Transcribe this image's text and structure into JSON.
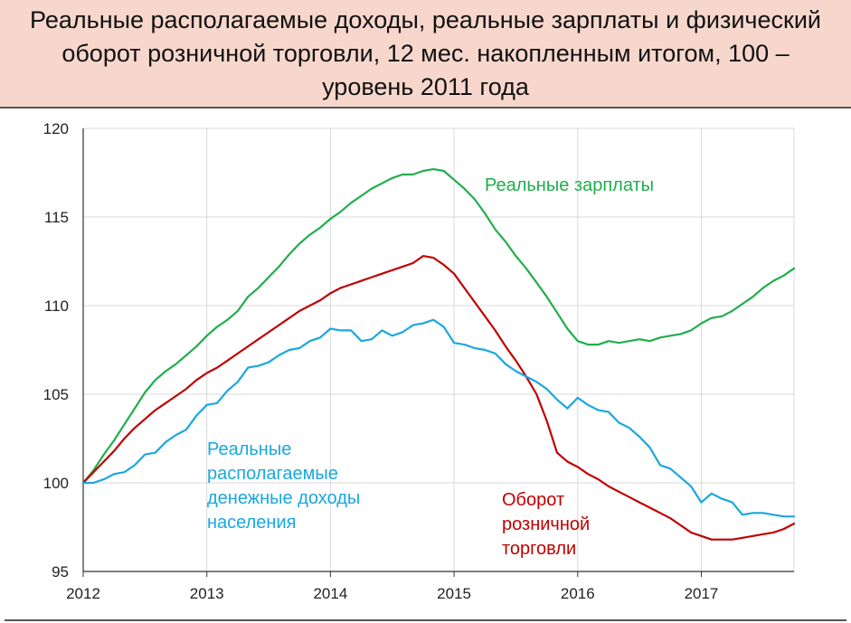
{
  "title": "Реальные располагаемые доходы, реальные зарплаты и физический оборот розничной торговли, 12 мес. накопленным итогом, 100 – уровень 2011 года",
  "colors": {
    "title_background": "#f7d7cc",
    "grid": "#d9d9d9",
    "axis": "#333333"
  },
  "chart_data": {
    "type": "line",
    "title": "Реальные располагаемые доходы, реальные зарплаты и физический оборот розничной торговли, 12 мес. накопленным итогом, 100 – уровень 2011 года",
    "xlabel": "",
    "ylabel": "",
    "ylim": [
      95,
      120
    ],
    "xlim": [
      2012.0,
      2017.75
    ],
    "grid": true,
    "y_ticks": [
      "95",
      "100",
      "105",
      "110",
      "115",
      "120"
    ],
    "x_ticks": [
      "2012",
      "2013",
      "2014",
      "2015",
      "2016",
      "2017"
    ],
    "series": [
      {
        "name": "Реальные зарплаты",
        "color": "#1fae4b",
        "label_lines": [
          "Реальные зарплаты"
        ],
        "x": [
          2012.0,
          2012.083,
          2012.167,
          2012.25,
          2012.333,
          2012.417,
          2012.5,
          2012.583,
          2012.667,
          2012.75,
          2012.833,
          2012.917,
          2013.0,
          2013.083,
          2013.167,
          2013.25,
          2013.333,
          2013.417,
          2013.5,
          2013.583,
          2013.667,
          2013.75,
          2013.833,
          2013.917,
          2014.0,
          2014.083,
          2014.167,
          2014.25,
          2014.333,
          2014.417,
          2014.5,
          2014.583,
          2014.667,
          2014.75,
          2014.833,
          2014.917,
          2015.0,
          2015.083,
          2015.167,
          2015.25,
          2015.333,
          2015.417,
          2015.5,
          2015.583,
          2015.667,
          2015.75,
          2015.833,
          2015.917,
          2016.0,
          2016.083,
          2016.167,
          2016.25,
          2016.333,
          2016.417,
          2016.5,
          2016.583,
          2016.667,
          2016.75,
          2016.833,
          2016.917,
          2017.0,
          2017.083,
          2017.167,
          2017.25,
          2017.333,
          2017.417,
          2017.5,
          2017.583,
          2017.667,
          2017.75
        ],
        "values": [
          100.0,
          100.7,
          101.6,
          102.4,
          103.3,
          104.2,
          105.1,
          105.8,
          106.3,
          106.7,
          107.2,
          107.7,
          108.3,
          108.8,
          109.2,
          109.7,
          110.5,
          111.0,
          111.6,
          112.2,
          112.9,
          113.5,
          114.0,
          114.4,
          114.9,
          115.3,
          115.8,
          116.2,
          116.6,
          116.9,
          117.2,
          117.4,
          117.4,
          117.6,
          117.7,
          117.6,
          117.1,
          116.6,
          116.0,
          115.2,
          114.3,
          113.6,
          112.8,
          112.1,
          111.3,
          110.5,
          109.6,
          108.7,
          108.0,
          107.8,
          107.8,
          108.0,
          107.9,
          108.0,
          108.1,
          108.0,
          108.2,
          108.3,
          108.4,
          108.6,
          109.0,
          109.3,
          109.4,
          109.7,
          110.1,
          110.5,
          111.0,
          111.4,
          111.7,
          112.1
        ]
      },
      {
        "name": "Оборот розничной торговли",
        "color": "#c00000",
        "label_lines": [
          "Оборот",
          "розничной",
          "торговли"
        ],
        "x": [
          2012.0,
          2012.083,
          2012.167,
          2012.25,
          2012.333,
          2012.417,
          2012.5,
          2012.583,
          2012.667,
          2012.75,
          2012.833,
          2012.917,
          2013.0,
          2013.083,
          2013.167,
          2013.25,
          2013.333,
          2013.417,
          2013.5,
          2013.583,
          2013.667,
          2013.75,
          2013.833,
          2013.917,
          2014.0,
          2014.083,
          2014.167,
          2014.25,
          2014.333,
          2014.417,
          2014.5,
          2014.583,
          2014.667,
          2014.75,
          2014.833,
          2014.917,
          2015.0,
          2015.083,
          2015.167,
          2015.25,
          2015.333,
          2015.417,
          2015.5,
          2015.583,
          2015.667,
          2015.75,
          2015.833,
          2015.917,
          2016.0,
          2016.083,
          2016.167,
          2016.25,
          2016.333,
          2016.417,
          2016.5,
          2016.583,
          2016.667,
          2016.75,
          2016.833,
          2016.917,
          2017.0,
          2017.083,
          2017.167,
          2017.25,
          2017.333,
          2017.417,
          2017.5,
          2017.583,
          2017.667,
          2017.75
        ],
        "values": [
          100.0,
          100.6,
          101.2,
          101.8,
          102.5,
          103.1,
          103.6,
          104.1,
          104.5,
          104.9,
          105.3,
          105.8,
          106.2,
          106.5,
          106.9,
          107.3,
          107.7,
          108.1,
          108.5,
          108.9,
          109.3,
          109.7,
          110.0,
          110.3,
          110.7,
          111.0,
          111.2,
          111.4,
          111.6,
          111.8,
          112.0,
          112.2,
          112.4,
          112.8,
          112.7,
          112.3,
          111.8,
          111.0,
          110.2,
          109.4,
          108.6,
          107.7,
          106.9,
          106.0,
          105.0,
          103.5,
          101.7,
          101.2,
          100.9,
          100.5,
          100.2,
          99.8,
          99.5,
          99.2,
          98.9,
          98.6,
          98.3,
          98.0,
          97.6,
          97.2,
          97.0,
          96.8,
          96.8,
          96.8,
          96.9,
          97.0,
          97.1,
          97.2,
          97.4,
          97.7
        ]
      },
      {
        "name": "Реальные располагаемые денежные доходы населения",
        "color": "#1aa7e0",
        "label_lines": [
          "Реальные",
          "располагаемые",
          "денежные доходы",
          "населения"
        ],
        "x": [
          2012.0,
          2012.083,
          2012.167,
          2012.25,
          2012.333,
          2012.417,
          2012.5,
          2012.583,
          2012.667,
          2012.75,
          2012.833,
          2012.917,
          2013.0,
          2013.083,
          2013.167,
          2013.25,
          2013.333,
          2013.417,
          2013.5,
          2013.583,
          2013.667,
          2013.75,
          2013.833,
          2013.917,
          2014.0,
          2014.083,
          2014.167,
          2014.25,
          2014.333,
          2014.417,
          2014.5,
          2014.583,
          2014.667,
          2014.75,
          2014.833,
          2014.917,
          2015.0,
          2015.083,
          2015.167,
          2015.25,
          2015.333,
          2015.417,
          2015.5,
          2015.583,
          2015.667,
          2015.75,
          2015.833,
          2015.917,
          2016.0,
          2016.083,
          2016.167,
          2016.25,
          2016.333,
          2016.417,
          2016.5,
          2016.583,
          2016.667,
          2016.75,
          2016.833,
          2016.917,
          2017.0,
          2017.083,
          2017.167,
          2017.25,
          2017.333,
          2017.417,
          2017.5,
          2017.583,
          2017.667,
          2017.75
        ],
        "values": [
          100.0,
          100.0,
          100.2,
          100.5,
          100.6,
          101.0,
          101.6,
          101.7,
          102.3,
          102.7,
          103.0,
          103.8,
          104.4,
          104.5,
          105.2,
          105.7,
          106.5,
          106.6,
          106.8,
          107.2,
          107.5,
          107.6,
          108.0,
          108.2,
          108.7,
          108.6,
          108.6,
          108.0,
          108.1,
          108.6,
          108.3,
          108.5,
          108.9,
          109.0,
          109.2,
          108.8,
          107.9,
          107.8,
          107.6,
          107.5,
          107.3,
          106.7,
          106.3,
          106.0,
          105.7,
          105.3,
          104.7,
          104.2,
          104.8,
          104.4,
          104.1,
          104.0,
          103.4,
          103.1,
          102.6,
          102.0,
          101.0,
          100.8,
          100.3,
          99.8,
          98.9,
          99.4,
          99.1,
          98.9,
          98.2,
          98.3,
          98.3,
          98.2,
          98.1,
          98.1
        ]
      }
    ]
  }
}
